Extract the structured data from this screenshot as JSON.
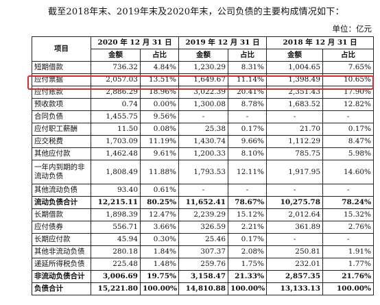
{
  "intro_text": "截至2018年末、2019年末及2020年末，公司负债的主要构成情况如下：",
  "unit_label": "单位：亿元",
  "table": {
    "item_header": "项目",
    "periods": [
      "2020 年 12 月 31 日",
      "2019 年 12 月 31 日",
      "2018 年 12 月 31 日"
    ],
    "sub_amount": "金额",
    "sub_ratio": "占比",
    "rows": [
      {
        "item": "短期借款",
        "v": [
          "736.32",
          "4.84%",
          "1,230.29",
          "8.31%",
          "1,004.65",
          "7.65%"
        ]
      },
      {
        "item": "应付票据",
        "v": [
          "2,057.03",
          "13.51%",
          "1,649.67",
          "11.14%",
          "1,398.49",
          "10.65%"
        ]
      },
      {
        "item": "应付账款",
        "v": [
          "2,886.29",
          "18.96%",
          "3,022.39",
          "20.41%",
          "2,351.43",
          "17.90%"
        ]
      },
      {
        "item": "预收款项",
        "v": [
          "0.74",
          "0.00%",
          "1,300.08",
          "8.78%",
          "1,683.52",
          "12.82%"
        ]
      },
      {
        "item": "合同负债",
        "v": [
          "1,455.75",
          "9.56%",
          "-",
          "-",
          "-",
          "-"
        ]
      },
      {
        "item": "应付职工薪酬",
        "v": [
          "11.50",
          "0.08%",
          "25.38",
          "0.17%",
          "21.70",
          "0.17%"
        ]
      },
      {
        "item": "应交税费",
        "v": [
          "1,703.09",
          "11.19%",
          "1,430.74",
          "9.66%",
          "1,112.29",
          "8.47%"
        ]
      },
      {
        "item": "其他应付款",
        "v": [
          "1,462.48",
          "9.61%",
          "1,200.33",
          "8.10%",
          "785.75",
          "5.98%"
        ]
      },
      {
        "item": "一年内到期的非流动负债",
        "v": [
          "1,808.49",
          "11.88%",
          "1,793.53",
          "12.11%",
          "1,917.95",
          "14.60%"
        ]
      },
      {
        "item": "其他流动负债",
        "v": [
          "93.40",
          "0.61%",
          "-",
          "-",
          "-",
          "-"
        ]
      },
      {
        "item": "流动负债合计",
        "v": [
          "12,215.11",
          "80.25%",
          "11,652.41",
          "78.67%",
          "10,275.78",
          "78.24%"
        ]
      },
      {
        "item": "长期借款",
        "v": [
          "1,898.39",
          "12.47%",
          "2,239.29",
          "15.12%",
          "2,012.64",
          "15.32%"
        ]
      },
      {
        "item": "应付债券",
        "v": [
          "556.71",
          "3.66%",
          "326.59",
          "2.21%",
          "361.89",
          "2.76%"
        ]
      },
      {
        "item": "长期应付款",
        "v": [
          "45.94",
          "0.30%",
          "25.46",
          "0.17%",
          "-",
          "-"
        ]
      },
      {
        "item": "其他非流动负债",
        "v": [
          "280.18",
          "1.84%",
          "307.37",
          "2.08%",
          "250.81",
          "1.91%"
        ]
      },
      {
        "item": "递延所得税负债",
        "v": [
          "225.48",
          "1.48%",
          "259.76",
          "1.75%",
          "232.01",
          "1.77%"
        ]
      },
      {
        "item": "非流动负债合计",
        "v": [
          "3,006.69",
          "19.75%",
          "3,158.47",
          "21.33%",
          "2,857.35",
          "21.76%"
        ]
      },
      {
        "item": "负债合计",
        "v": [
          "15,221.80",
          "100.00%",
          "14,810.88",
          "100.00%",
          "13,133.13",
          "100.00%"
        ]
      }
    ]
  }
}
